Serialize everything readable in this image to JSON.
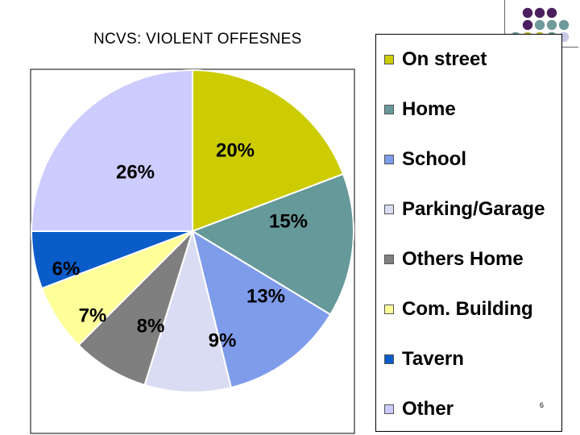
{
  "slide": {
    "title": "NCVS: VIOLENT OFFESNES",
    "page_number": "6"
  },
  "chart_data": {
    "type": "pie",
    "title": "NCVS: VIOLENT OFFESNES",
    "start_angle_deg": 0,
    "direction": "clockwise",
    "slices": [
      {
        "label": "On street",
        "value": 20,
        "display": "20%",
        "color": "#cccc00"
      },
      {
        "label": "Home",
        "value": 15,
        "display": "15%",
        "color": "#669999"
      },
      {
        "label": "School",
        "value": 13,
        "display": "13%",
        "color": "#7f9ceb"
      },
      {
        "label": "Parking/Garage",
        "value": 9,
        "display": "9%",
        "color": "#d9dcf2"
      },
      {
        "label": "Others Home",
        "value": 8,
        "display": "8%",
        "color": "#7f7f7f"
      },
      {
        "label": "Com. Building",
        "value": 7,
        "display": "7%",
        "color": "#ffff99"
      },
      {
        "label": "Tavern",
        "value": 6,
        "display": "6%",
        "color": "#0a5cc8"
      },
      {
        "label": "Other",
        "value": 26,
        "display": "26%",
        "color": "#ccccff"
      }
    ],
    "legend_position": "right"
  },
  "legend": {
    "items": [
      {
        "label": "On street",
        "color": "#cccc00"
      },
      {
        "label": "Home",
        "color": "#669999"
      },
      {
        "label": "School",
        "color": "#7f9ceb"
      },
      {
        "label": "Parking/Garage",
        "color": "#d9dcf2"
      },
      {
        "label": "Others Home",
        "color": "#7f7f7f"
      },
      {
        "label": "Com. Building",
        "color": "#ffff99"
      },
      {
        "label": "Tavern",
        "color": "#0a5cc8"
      },
      {
        "label": "Other",
        "color": "#ccccff"
      }
    ]
  },
  "decoration": {
    "dot_colors": [
      "#4b1f5e",
      "#6f9b9c",
      "#b8b63a",
      "#c9c9e6"
    ]
  }
}
